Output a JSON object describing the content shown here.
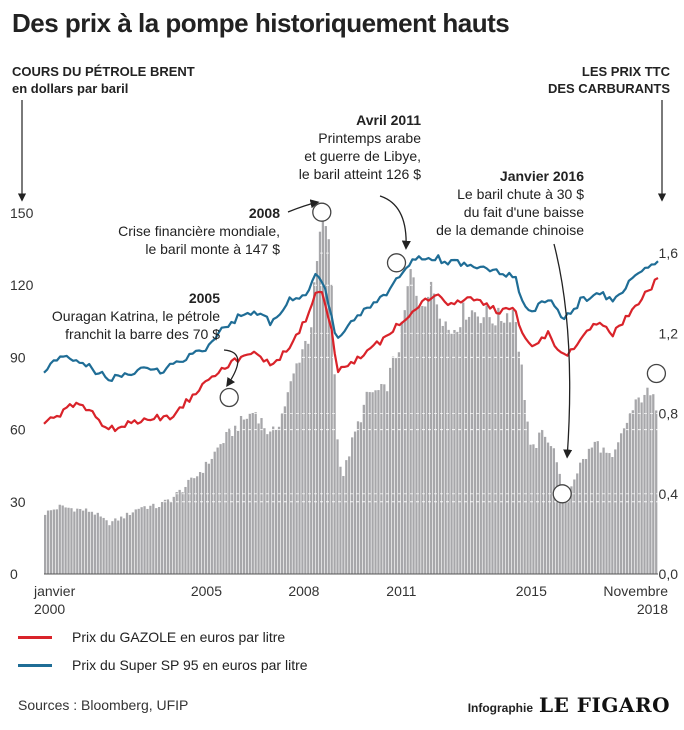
{
  "title": "Des prix à la pompe historiquement hauts",
  "left_axis_title": [
    "COURS DU PÉTROLE BRENT",
    "en dollars par baril"
  ],
  "right_axis_title": [
    "LES PRIX TTC",
    "DES CARBURANTS"
  ],
  "chart_data": {
    "type": "area",
    "title": "Des prix à la pompe historiquement hauts",
    "y_left": {
      "label": "COURS DU PÉTROLE BRENT en dollars par baril",
      "range": [
        0,
        150
      ],
      "ticks": [
        "0",
        "30",
        "60",
        "90",
        "120",
        "150"
      ],
      "tick_values": [
        0,
        30,
        60,
        90,
        120,
        150
      ]
    },
    "y_right": {
      "label": "LES PRIX TTC DES CARBURANTS",
      "range": [
        0,
        1.8
      ],
      "ticks": [
        "0,0",
        "0,4",
        "0,8",
        "1,2",
        "1,6"
      ],
      "tick_values": [
        0,
        0.4,
        0.8,
        1.2,
        1.6
      ]
    },
    "x_range": [
      2000.0,
      2018.9
    ],
    "x_labels": [
      {
        "value": 2000.0,
        "lines": [
          "janvier",
          "2000"
        ],
        "align": "start"
      },
      {
        "value": 2005.0,
        "lines": [
          "2005"
        ],
        "align": "middle"
      },
      {
        "value": 2008.0,
        "lines": [
          "2008"
        ],
        "align": "middle"
      },
      {
        "value": 2011.0,
        "lines": [
          "2011"
        ],
        "align": "middle"
      },
      {
        "value": 2015.0,
        "lines": [
          "2015"
        ],
        "align": "middle"
      },
      {
        "value": 2018.9,
        "lines": [
          "Novembre",
          "2018"
        ],
        "align": "end"
      }
    ],
    "grid": true,
    "series": [
      {
        "name": "",
        "axis": "left",
        "kind": "area",
        "color": "#a7a7aa",
        "x": [
          2000.0,
          2000.5,
          2001.0,
          2001.5,
          2002.0,
          2002.5,
          2003.0,
          2003.5,
          2004.0,
          2004.5,
          2005.0,
          2005.5,
          2006.0,
          2006.5,
          2007.0,
          2007.3,
          2007.6,
          2007.9,
          2008.2,
          2008.5,
          2008.7,
          2008.9,
          2009.0,
          2009.2,
          2009.5,
          2010.0,
          2010.5,
          2011.0,
          2011.3,
          2011.5,
          2012.0,
          2012.5,
          2013.0,
          2013.5,
          2014.0,
          2014.5,
          2014.8,
          2015.0,
          2015.4,
          2015.8,
          2016.0,
          2016.5,
          2017.0,
          2017.5,
          2018.0,
          2018.5,
          2018.9
        ],
        "y": [
          25,
          28,
          27,
          26,
          21,
          24,
          28,
          28,
          32,
          38,
          45,
          55,
          62,
          68,
          57,
          65,
          78,
          92,
          100,
          140,
          147,
          115,
          60,
          40,
          55,
          75,
          76,
          98,
          126,
          113,
          118,
          100,
          110,
          108,
          106,
          110,
          75,
          50,
          60,
          48,
          30,
          45,
          55,
          47,
          65,
          76,
          70
        ]
      },
      {
        "name": "Prix du GAZOLE en euros par litre",
        "axis": "right",
        "kind": "line",
        "color": "#d9232a",
        "x": [
          2000.0,
          2000.5,
          2001.0,
          2001.5,
          2002.0,
          2002.5,
          2003.0,
          2003.5,
          2004.0,
          2004.5,
          2005.0,
          2005.5,
          2006.0,
          2006.5,
          2007.0,
          2007.5,
          2008.0,
          2008.4,
          2008.6,
          2008.9,
          2009.0,
          2009.5,
          2010.0,
          2010.5,
          2011.0,
          2011.5,
          2012.0,
          2012.5,
          2013.0,
          2013.5,
          2014.0,
          2014.5,
          2014.8,
          2015.0,
          2015.5,
          2016.0,
          2016.5,
          2017.0,
          2017.5,
          2018.0,
          2018.5,
          2018.9
        ],
        "y": [
          0.76,
          0.79,
          0.86,
          0.8,
          0.72,
          0.74,
          0.77,
          0.78,
          0.79,
          0.88,
          0.97,
          1.03,
          1.07,
          1.1,
          1.05,
          1.11,
          1.25,
          1.42,
          1.38,
          1.2,
          1.01,
          1.05,
          1.12,
          1.17,
          1.26,
          1.34,
          1.39,
          1.34,
          1.38,
          1.35,
          1.31,
          1.31,
          1.18,
          1.13,
          1.2,
          1.08,
          1.16,
          1.25,
          1.2,
          1.3,
          1.39,
          1.47
        ]
      },
      {
        "name": "Prix du Super SP 95 en euros par litre",
        "axis": "right",
        "kind": "line",
        "color": "#1f6d96",
        "x": [
          2000.0,
          2000.5,
          2001.0,
          2001.5,
          2002.0,
          2002.5,
          2003.0,
          2003.5,
          2004.0,
          2004.5,
          2005.0,
          2005.5,
          2006.0,
          2006.5,
          2007.0,
          2007.5,
          2008.0,
          2008.4,
          2008.6,
          2008.9,
          2009.0,
          2009.5,
          2010.0,
          2010.5,
          2011.0,
          2011.5,
          2012.0,
          2012.5,
          2013.0,
          2013.5,
          2014.0,
          2014.5,
          2014.8,
          2015.0,
          2015.5,
          2016.0,
          2016.5,
          2017.0,
          2017.5,
          2018.0,
          2018.5,
          2018.9
        ],
        "y": [
          1.02,
          1.07,
          1.07,
          1.02,
          0.97,
          0.99,
          1.02,
          1.01,
          1.04,
          1.09,
          1.13,
          1.23,
          1.28,
          1.31,
          1.25,
          1.36,
          1.38,
          1.5,
          1.45,
          1.25,
          1.15,
          1.26,
          1.34,
          1.38,
          1.5,
          1.58,
          1.58,
          1.55,
          1.55,
          1.52,
          1.5,
          1.48,
          1.32,
          1.3,
          1.38,
          1.26,
          1.36,
          1.4,
          1.37,
          1.45,
          1.52,
          1.55
        ]
      }
    ],
    "annotations": [
      {
        "year": "2005",
        "lines": [
          "Ouragan Katrina, le pétrole",
          "franchit la barre des 70 $"
        ],
        "marker": {
          "x": 2005.7,
          "y": 70
        }
      },
      {
        "year": "2008",
        "lines": [
          "Crise financière mondiale,",
          "le baril monte à 147 $"
        ],
        "marker": {
          "x": 2008.55,
          "y": 147
        }
      },
      {
        "year": "Avril 2011",
        "lines": [
          "Printemps arabe",
          "et guerre de Libye,",
          "le baril atteint 126 $"
        ],
        "marker": {
          "x": 2010.85,
          "y": 126
        }
      },
      {
        "year": "Janvier 2016",
        "lines": [
          "Le baril chute à 30 $",
          "du fait d'une baisse",
          "de la demande chinoise"
        ],
        "marker": {
          "x": 2015.95,
          "y": 30
        }
      },
      {
        "year": "",
        "lines": [],
        "marker": {
          "x": 2018.85,
          "y": 80
        }
      }
    ]
  },
  "legend": [
    {
      "label": "Prix du GAZOLE en euros par litre",
      "color": "#d9232a"
    },
    {
      "label": "Prix du Super SP 95 en euros par litre",
      "color": "#1f6d96"
    }
  ],
  "source": "Sources : Bloomberg, UFIP",
  "credit": {
    "prefix": "Infographie",
    "brand": "LE FIGARO"
  }
}
